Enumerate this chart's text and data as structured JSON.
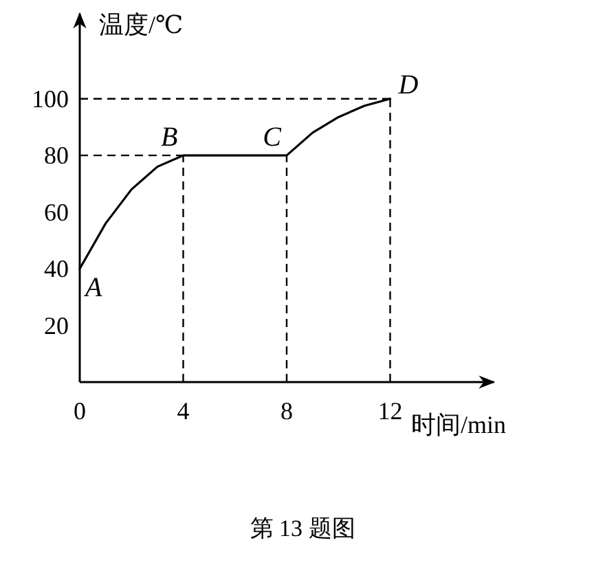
{
  "chart_data": {
    "type": "line",
    "xlabel": "时间/min",
    "ylabel": "温度/℃",
    "series": [
      {
        "color": "#000000",
        "x": [
          0,
          1,
          2,
          3,
          4,
          8,
          9,
          10,
          11,
          12
        ],
        "values": [
          40,
          56,
          68,
          76,
          80,
          80,
          88,
          93.5,
          97.5,
          100
        ]
      }
    ],
    "xlim": [
      0,
      16
    ],
    "ylim": [
      0,
      130
    ],
    "xticks": [
      0,
      4,
      8,
      12
    ],
    "yticks": [
      20,
      40,
      60,
      80,
      100
    ],
    "ref_lines": [
      {
        "axis": "y",
        "value": 80,
        "line_style": "dashed"
      },
      {
        "axis": "y",
        "value": 100,
        "line_style": "dashed"
      },
      {
        "axis": "x",
        "value": 4,
        "line_style": "dashed"
      },
      {
        "axis": "x",
        "value": 8,
        "line_style": "dashed"
      },
      {
        "axis": "x",
        "value": 12,
        "line_style": "dashed"
      }
    ],
    "annotations": [
      {
        "text": "A",
        "x": 0,
        "y": 40
      },
      {
        "text": "B",
        "x": 4,
        "y": 80
      },
      {
        "text": "C",
        "x": 8,
        "y": 80
      },
      {
        "text": "D",
        "x": 12,
        "y": 100
      },
      "第 13 题图"
    ],
    "grid": false,
    "marker": "none",
    "line_style": "solid"
  }
}
